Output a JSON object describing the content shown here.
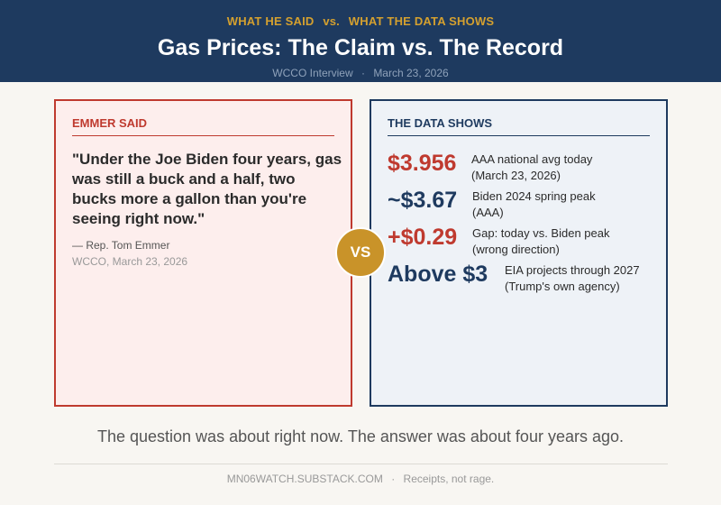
{
  "header": {
    "kicker_left": "WHAT HE SAID",
    "kicker_vs": "vs.",
    "kicker_right": "WHAT THE DATA SHOWS",
    "title": "Gas Prices: The Claim vs. The Record",
    "outlet": "WCCO Interview",
    "separator": "·",
    "date": "March 23, 2026"
  },
  "claim": {
    "label": "EMMER SAID",
    "quote": "\"Under the Joe Biden four years, gas was still a buck and a half, two bucks more a gallon than you're seeing right now.\"",
    "attribution": "— Rep. Tom Emmer",
    "source": "WCCO, March 23, 2026"
  },
  "vs_badge": "VS",
  "data": {
    "label": "THE DATA SHOWS",
    "stats": [
      {
        "value": "$3.956",
        "line1": "AAA national avg today",
        "line2": "(March 23, 2026)",
        "color": "#bf3a2f"
      },
      {
        "value": "~$3.67",
        "line1": "Biden 2024 spring peak",
        "line2": "(AAA)",
        "color": "#1e3a5f"
      },
      {
        "value": "+$0.29",
        "line1": "Gap: today vs. Biden peak",
        "line2": "(wrong direction)",
        "color": "#bf3a2f"
      },
      {
        "value": "Above $3",
        "line1": "EIA projects through 2027",
        "line2": "(Trump's own agency)",
        "color": "#1e3a5f"
      }
    ]
  },
  "conclusion": "The question was about right now. The answer was about four years ago.",
  "footer": {
    "site": "MN06WATCH.SUBSTACK.COM",
    "separator": "·",
    "tagline": "Receipts, not rage."
  }
}
